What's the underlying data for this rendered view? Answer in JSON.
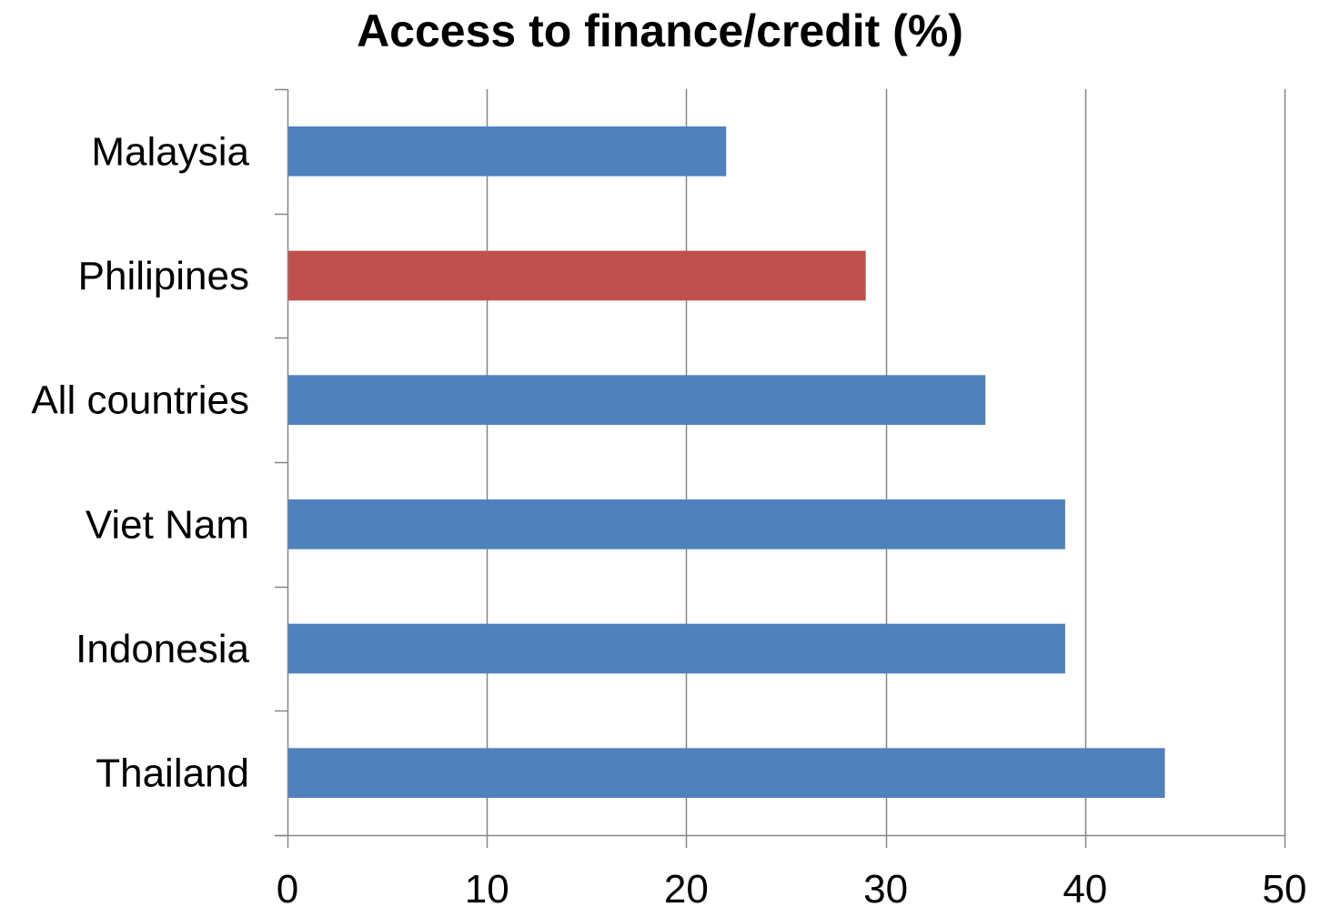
{
  "chart_data": {
    "type": "bar",
    "orientation": "horizontal",
    "title": "Access to finance/credit (%)",
    "xlabel": "",
    "ylabel": "",
    "categories": [
      "Malaysia",
      "Philipines",
      "All countries",
      "Viet Nam",
      "Indonesia",
      "Thailand"
    ],
    "values": [
      22,
      29,
      35,
      39,
      39,
      44
    ],
    "bar_colors": [
      "#4f81bd",
      "#c0504d",
      "#4f81bd",
      "#4f81bd",
      "#4f81bd",
      "#4f81bd"
    ],
    "xlim": [
      0,
      50
    ],
    "x_ticks": [
      0,
      10,
      20,
      30,
      40,
      50
    ],
    "grid": "vertical",
    "legend": "none"
  },
  "colors": {
    "default_bar": "#4f81bd",
    "highlight_bar": "#c0504d",
    "gridline": "#868686",
    "axis": "#868686"
  }
}
